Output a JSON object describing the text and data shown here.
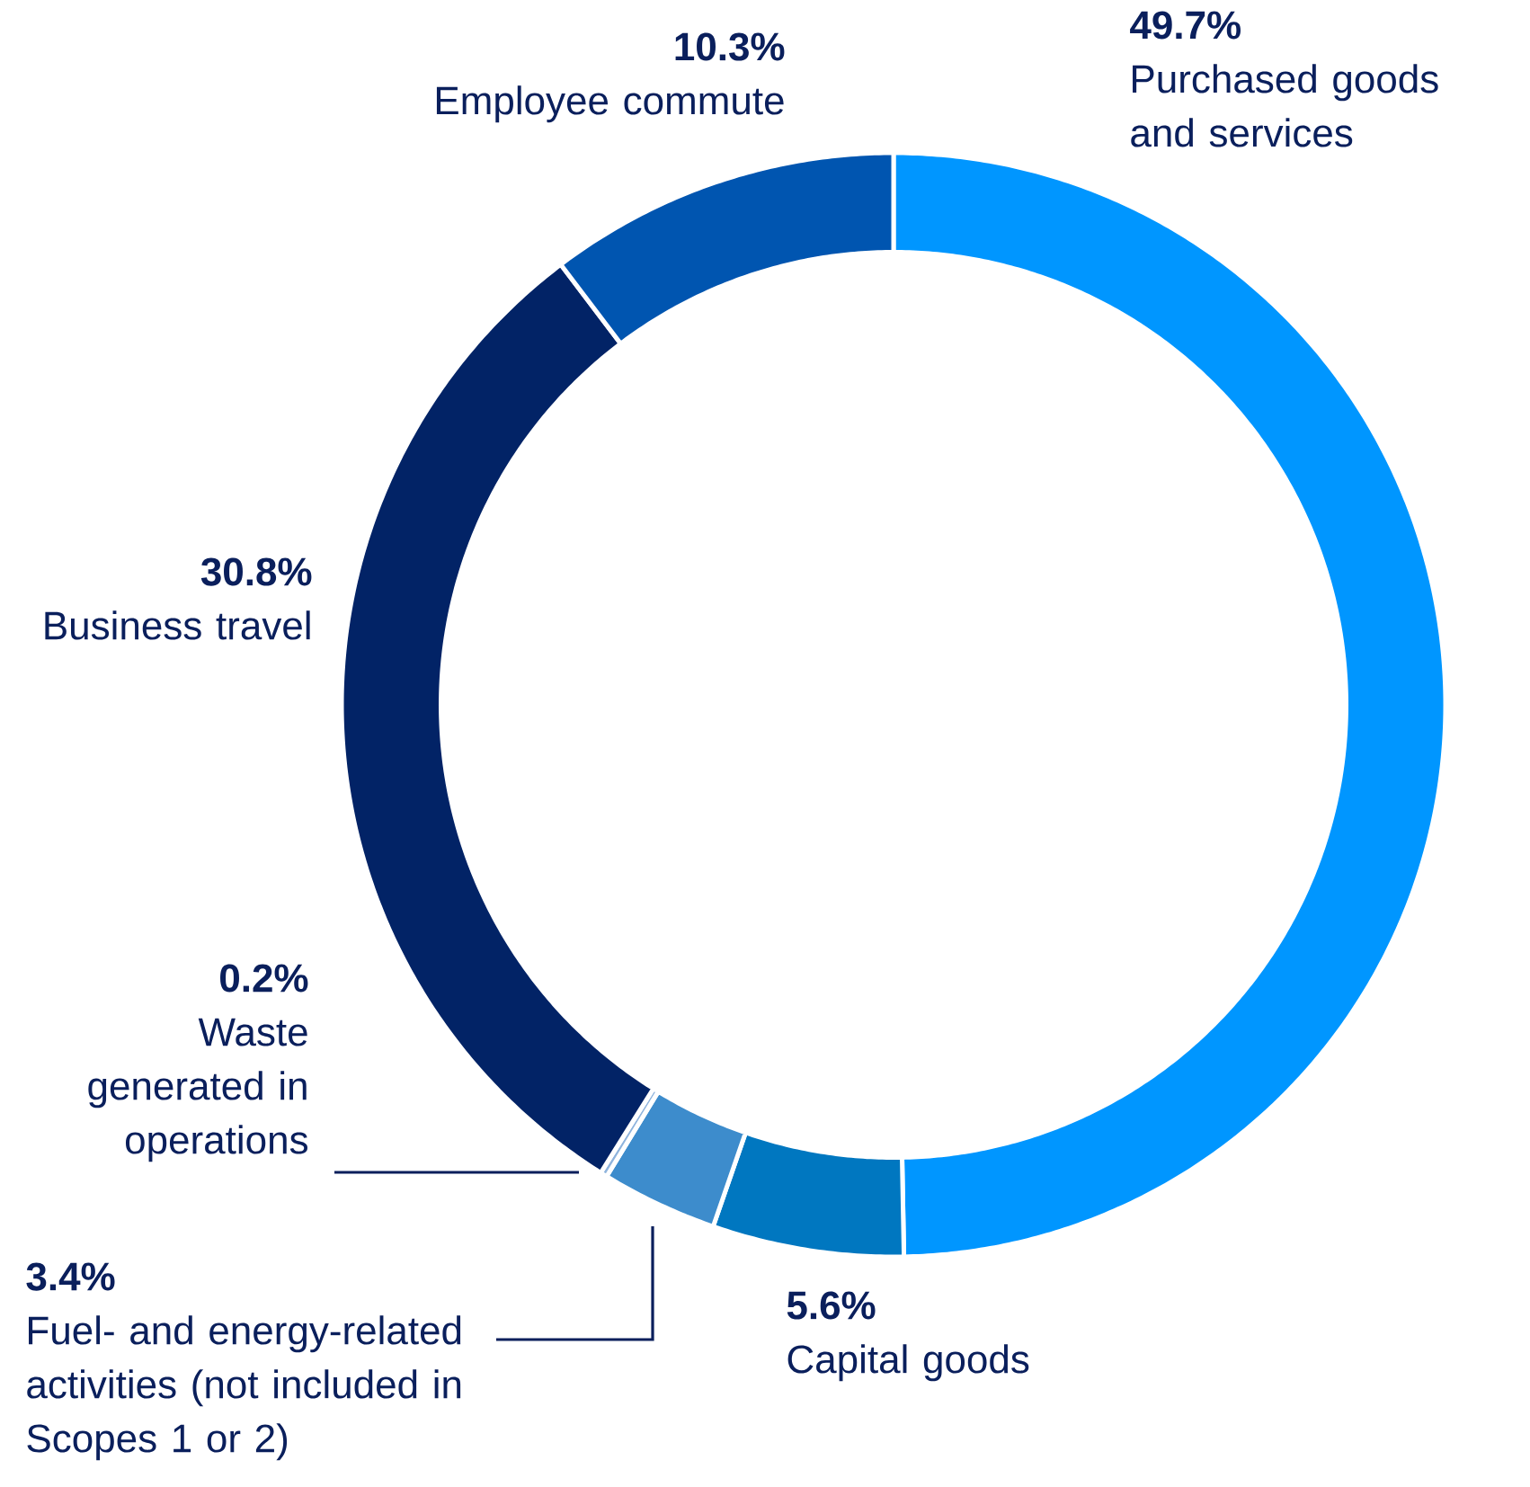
{
  "chart_data": {
    "type": "donut",
    "categories": [
      "Purchased goods and services",
      "Capital goods",
      "Fuel- and energy-related activities (not included in Scopes 1 or 2)",
      "Waste generated in operations",
      "Business travel",
      "Employee commute"
    ],
    "values": [
      49.7,
      5.6,
      3.4,
      0.2,
      30.8,
      10.3
    ],
    "value_labels": [
      "49.7%",
      "5.6%",
      "3.4%",
      "0.2%",
      "30.8%",
      "10.3%"
    ],
    "colors": [
      "#0096ff",
      "#0077c0",
      "#3d8ccc",
      "#8fb4dd",
      "#022366",
      "#0055b0"
    ],
    "legend": false
  }
}
